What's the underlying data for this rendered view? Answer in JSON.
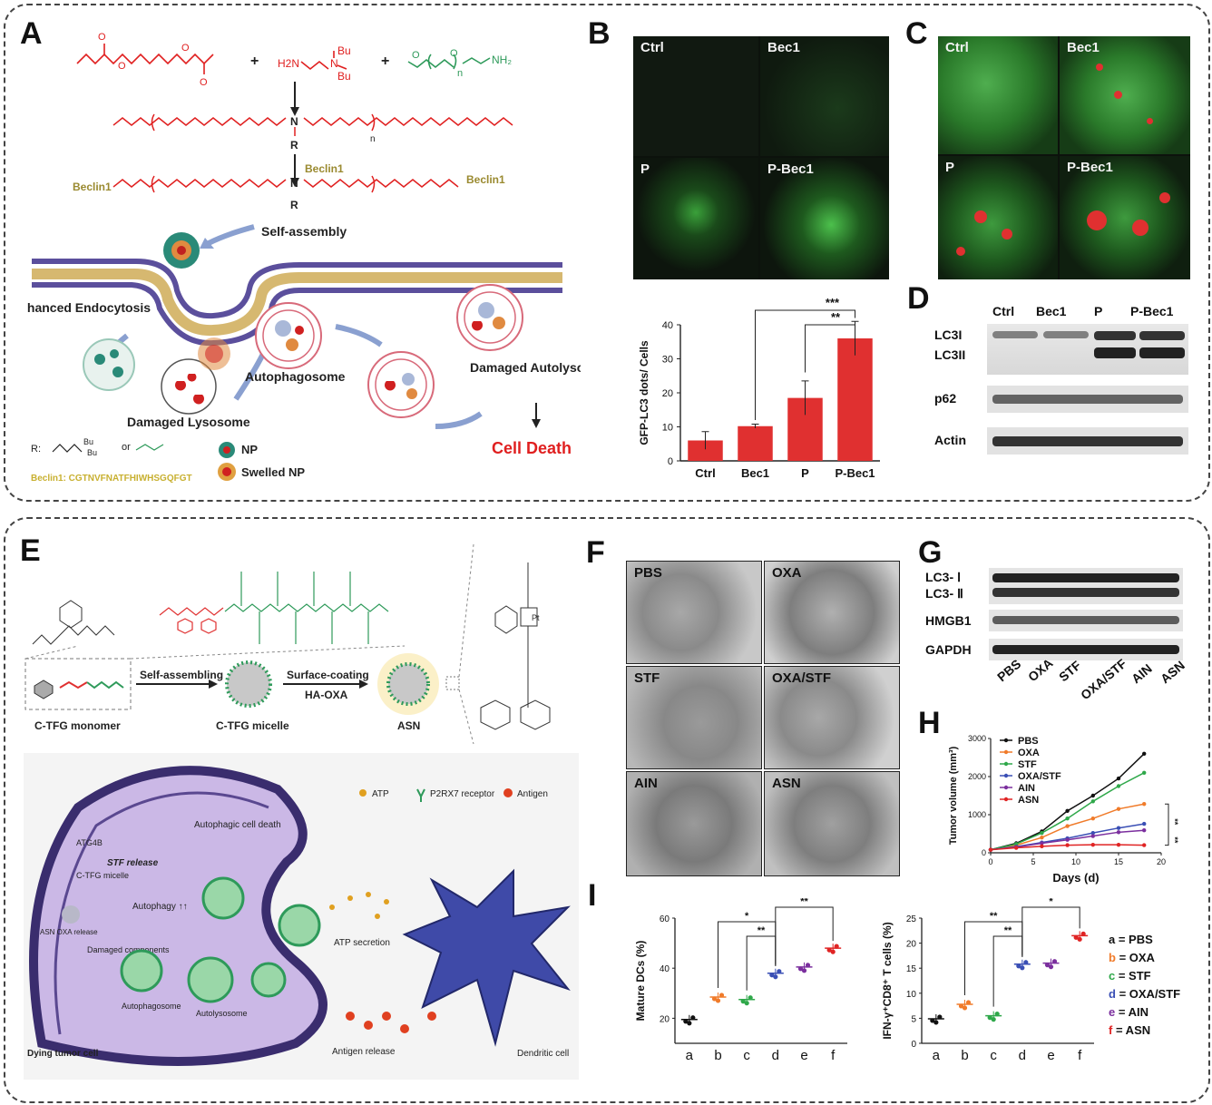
{
  "panels": [
    "A",
    "B",
    "C",
    "D",
    "E",
    "F",
    "G",
    "H",
    "I"
  ],
  "panelA": {
    "reagent_amine": [
      "H2N",
      "N",
      "Bu",
      "Bu"
    ],
    "reagent_peg": "n",
    "R_label": "R",
    "beclin_label": "Beclin1",
    "self_assembly": "Self-assembly",
    "enhanced_endocytosis": "Enhanced Endocytosis",
    "autophagosome": "Autophagosome",
    "damaged_autolysosome": "Damaged Autolysosome",
    "damaged_lysosome": "Damaged Lysosome",
    "cell_death": "Cell Death",
    "legend_R": "R:",
    "legend_or": "or",
    "legend_np": "NP",
    "legend_swelled": "Swelled NP",
    "beclin_seq": "Beclin1: CGTNVFNATFHIWHSGQFGT",
    "plus": "+"
  },
  "panelB": {
    "tiles": [
      "Ctrl",
      "Bec1",
      "P",
      "P-Bec1"
    ],
    "chart_data": {
      "type": "bar",
      "categories": [
        "Ctrl",
        "Bec1",
        "P",
        "P-Bec1"
      ],
      "values": [
        6,
        10.2,
        18.5,
        36
      ],
      "errors": [
        2.6,
        0.6,
        5,
        5
      ],
      "ylabel": "GFP-LC3 dots/ Cells",
      "ylim": [
        0,
        40
      ],
      "yticks": [
        0,
        10,
        20,
        30,
        40
      ],
      "significance": [
        "***",
        "**"
      ],
      "color": "#e03030"
    }
  },
  "panelC": {
    "tiles": [
      "Ctrl",
      "Bec1",
      "P",
      "P-Bec1"
    ]
  },
  "panelD": {
    "columns": [
      "Ctrl",
      "Bec1",
      "P",
      "P-Bec1"
    ],
    "rows": [
      "LC3I",
      "LC3II",
      "p62",
      "Actin"
    ]
  },
  "panelE": {
    "monomer": "C-TFG monomer",
    "micelle": "C-TFG micelle",
    "asn": "ASN",
    "self_assembling": "Self-assembling",
    "surface_coating": "Surface-coating",
    "ha_oxa": "HA-OXA",
    "legend_atp": "ATP",
    "legend_receptor": "P2RX7 receptor",
    "legend_antigen": "Antigen",
    "autophagic_death": "Autophagic cell death",
    "atg4b": "ATG4B",
    "stf_release": "STF release",
    "ctfg_micelle": "C-TFG micelle",
    "autophagy": "Autophagy ↑↑",
    "asn_oxa": "ASN OXA release",
    "damaged_components": "Damaged components",
    "autophagosome": "Autophagosome",
    "autolysosome": "Autolysosome",
    "atp_secretion": "ATP secretion",
    "dying_cell": "Dying tumor cell",
    "antigen_release": "Antigen release",
    "dendritic_cell": "Dendritic cell"
  },
  "panelF": {
    "tiles": [
      "PBS",
      "OXA",
      "STF",
      "OXA/STF",
      "AIN",
      "ASN"
    ]
  },
  "panelG": {
    "rows": [
      "LC3- Ⅰ",
      "LC3- Ⅱ",
      "HMGB1",
      "GAPDH"
    ],
    "columns": [
      "PBS",
      "OXA",
      "STF",
      "OXA/STF",
      "AIN",
      "ASN"
    ]
  },
  "panelH": {
    "chart_data": {
      "type": "line",
      "x": [
        0,
        3,
        6,
        9,
        12,
        15,
        18
      ],
      "xlabel": "Days (d)",
      "ylabel": "Tumor volume (mm³)",
      "xlim": [
        0,
        20
      ],
      "ylim": [
        0,
        3000
      ],
      "xticks": [
        0,
        5,
        10,
        15,
        20
      ],
      "yticks": [
        0,
        1000,
        2000,
        3000
      ],
      "significance": [
        "**",
        "**"
      ],
      "series": [
        {
          "name": "PBS",
          "color": "#111111",
          "values": [
            80,
            250,
            560,
            1100,
            1500,
            1950,
            2600
          ]
        },
        {
          "name": "OXA",
          "color": "#f07b2a",
          "values": [
            80,
            200,
            400,
            700,
            900,
            1150,
            1280
          ]
        },
        {
          "name": "STF",
          "color": "#2fa84a",
          "values": [
            80,
            230,
            520,
            900,
            1350,
            1750,
            2100
          ]
        },
        {
          "name": "OXA/STF",
          "color": "#3a4fb5",
          "values": [
            80,
            160,
            270,
            380,
            520,
            650,
            760
          ]
        },
        {
          "name": "AIN",
          "color": "#7b2f9e",
          "values": [
            80,
            150,
            250,
            340,
            440,
            540,
            590
          ]
        },
        {
          "name": "ASN",
          "color": "#e02424",
          "values": [
            80,
            130,
            170,
            200,
            210,
            210,
            200
          ]
        }
      ]
    }
  },
  "panelI": {
    "chart_data": [
      {
        "type": "scatter",
        "categories": [
          "a",
          "b",
          "c",
          "d",
          "e",
          "f"
        ],
        "values": [
          19.5,
          28.5,
          27.5,
          38,
          40.5,
          48
        ],
        "colors": [
          "#111111",
          "#f07b2a",
          "#2fa84a",
          "#3a4fb5",
          "#7b2f9e",
          "#e02424"
        ],
        "ylabel": "Mature DCs (%)",
        "ylim": [
          10,
          60
        ],
        "yticks": [
          20,
          40,
          60
        ],
        "significance": [
          "*",
          "**",
          "**"
        ]
      },
      {
        "type": "scatter",
        "categories": [
          "a",
          "b",
          "c",
          "d",
          "e",
          "f"
        ],
        "values": [
          4.9,
          7.8,
          5.5,
          15.8,
          16,
          21.5
        ],
        "colors": [
          "#111111",
          "#f07b2a",
          "#2fa84a",
          "#3a4fb5",
          "#7b2f9e",
          "#e02424"
        ],
        "ylabel": "IFN-γ⁺CD8⁺ T cells (%)",
        "ylim": [
          0,
          25
        ],
        "yticks": [
          0,
          5,
          10,
          15,
          20,
          25
        ],
        "significance": [
          "**",
          "**",
          "*"
        ]
      }
    ],
    "legend": [
      {
        "key": "a = PBS",
        "color": "#111111"
      },
      {
        "key": "b = OXA",
        "color": "#f07b2a"
      },
      {
        "key": "c = STF",
        "color": "#2fa84a"
      },
      {
        "key": "d = OXA/STF",
        "color": "#3a4fb5"
      },
      {
        "key": "e = AIN",
        "color": "#7b2f9e"
      },
      {
        "key": "f = ASN",
        "color": "#e02424"
      }
    ]
  }
}
